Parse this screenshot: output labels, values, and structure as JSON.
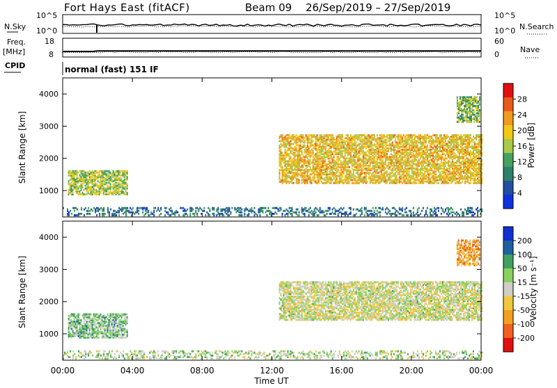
{
  "header": {
    "radar": "Fort Hays East (fitACF)",
    "beam": "Beam 09",
    "date_range": "26/Sep/2019 – 27/Sep/2019"
  },
  "noise_panel": {
    "left_label": "N.Sky",
    "left_tick_top": "10^5",
    "left_tick_bottom": "10^0",
    "right_label": "N.Search",
    "right_tick_top": "10^5",
    "right_tick_bottom": "10^0"
  },
  "freq_panel": {
    "label_line1": "Freq.",
    "label_line2": "[MHz]",
    "tick_top": "18",
    "tick_bottom": "8",
    "right_label": "Nave",
    "right_tick_top": "60",
    "right_tick_bottom": "0"
  },
  "cpid_panel": {
    "label": "CPID",
    "text": "normal (fast) 151 IF"
  },
  "power_panel": {
    "ylabel": "Slant Range [km]",
    "yticks": [
      "1000",
      "2000",
      "3000",
      "4000"
    ],
    "colorbar_label": "Power [dB]",
    "colorbar_ticks": [
      "4",
      "8",
      "12",
      "16",
      "20",
      "24",
      "28"
    ],
    "colorbar_colors": [
      "#1030e0",
      "#2050a0",
      "#2f7f6a",
      "#46a060",
      "#a9c94a",
      "#f2c818",
      "#f09a20",
      "#ea5a1a",
      "#e01010"
    ]
  },
  "velocity_panel": {
    "ylabel": "Slant Range [km]",
    "yticks": [
      "1000",
      "2000",
      "3000",
      "4000"
    ],
    "colorbar_label": "Velocity [m s⁻¹]",
    "colorbar_ticks": [
      "-200",
      "-100",
      "-50",
      "-15",
      "15",
      "50",
      "100",
      "200"
    ],
    "colorbar_colors": [
      "#e01010",
      "#f06020",
      "#f3a020",
      "#f0c840",
      "#cfcfc8",
      "#8ad060",
      "#40a060",
      "#2060a0",
      "#1030d0"
    ]
  },
  "xaxis": {
    "label": "Time UT",
    "ticks": [
      "00:00",
      "04:00",
      "08:00",
      "12:00",
      "16:00",
      "20:00",
      "00:00"
    ]
  },
  "chart_data": {
    "type": "heatmap",
    "title": "Fort Hays East (fitACF) Beam 09 26/Sep/2019 – 27/Sep/2019",
    "xlabel": "Time UT",
    "ylabel": "Slant Range [km]",
    "xlim_hours": [
      0,
      24
    ],
    "ylim_km": [
      180,
      4500
    ],
    "panels": [
      {
        "name": "Power [dB]",
        "colorbar_range": [
          0,
          32
        ],
        "echo_regions": [
          {
            "t_start": 0.3,
            "t_end": 3.7,
            "range_start": 850,
            "range_end": 1600,
            "typical_value": 16
          },
          {
            "t_start": 12.4,
            "t_end": 24,
            "range_start": 1200,
            "range_end": 2700,
            "typical_value": 20
          },
          {
            "t_start": 0,
            "t_end": 24,
            "range_start": 200,
            "range_end": 450,
            "typical_value": 8
          },
          {
            "t_start": 22.6,
            "t_end": 23.9,
            "range_start": 3100,
            "range_end": 3900,
            "typical_value": 14
          }
        ]
      },
      {
        "name": "Velocity [m s⁻¹]",
        "colorbar_range": [
          -250,
          250
        ],
        "echo_regions": [
          {
            "t_start": 0.3,
            "t_end": 3.7,
            "range_start": 850,
            "range_end": 1600,
            "typical_value": 60
          },
          {
            "t_start": 12.4,
            "t_end": 24,
            "range_start": 1400,
            "range_end": 2600,
            "typical_value": 0
          },
          {
            "t_start": 0,
            "t_end": 24,
            "range_start": 200,
            "range_end": 450,
            "typical_value": 30
          },
          {
            "t_start": 22.6,
            "t_end": 23.9,
            "range_start": 3100,
            "range_end": 3900,
            "typical_value": -100
          }
        ]
      }
    ],
    "freq_mhz": {
      "level_before_2h": 10.5,
      "level_after_2h": 10.8
    },
    "cpid": "normal (fast) 151 IF"
  }
}
